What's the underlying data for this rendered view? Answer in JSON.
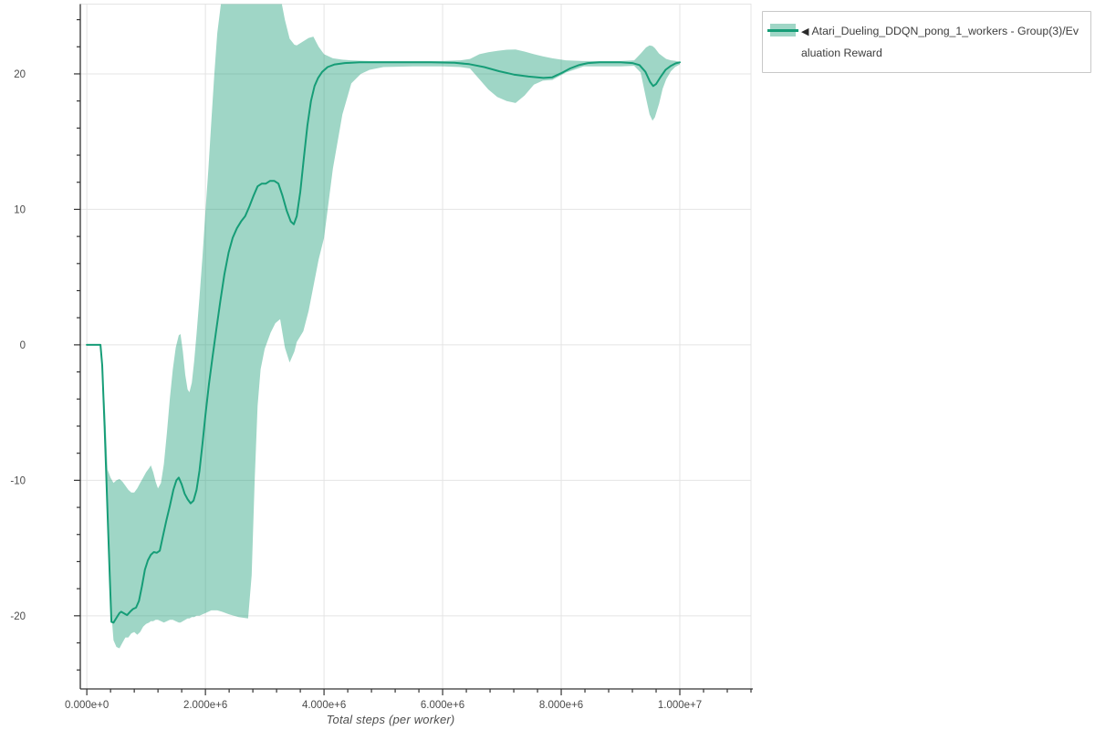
{
  "legend": {
    "marker": "◀",
    "label": "Atari_Dueling_DDQN_pong_1_workers - Group(3)/Evaluation Reward"
  },
  "colors": {
    "line": "#169d77",
    "band": "rgba(27,158,119,0.42)",
    "grid": "#e4e4e4",
    "spine": "#333333",
    "tick": "#333333",
    "tick_label": "#4a4a4a",
    "legend_border": "#c8c8c8"
  },
  "chart_data": {
    "type": "line",
    "title": "",
    "xlabel": "Total steps (per worker)",
    "ylabel": "",
    "grid": true,
    "legend_position": "top-right",
    "xlim": [
      -110000,
      11200000
    ],
    "ylim": [
      -25.4,
      25.15
    ],
    "x_ticks": [
      {
        "value": 0,
        "label": "0.000e+0"
      },
      {
        "value": 2000000,
        "label": "2.000e+6"
      },
      {
        "value": 4000000,
        "label": "4.000e+6"
      },
      {
        "value": 6000000,
        "label": "6.000e+6"
      },
      {
        "value": 8000000,
        "label": "8.000e+6"
      },
      {
        "value": 10000000,
        "label": "1.000e+7"
      }
    ],
    "x_minor_step": 400000,
    "y_ticks": [
      {
        "value": -20,
        "label": "-20"
      },
      {
        "value": -10,
        "label": "-10"
      },
      {
        "value": 0,
        "label": "0"
      },
      {
        "value": 10,
        "label": "10"
      },
      {
        "value": 20,
        "label": "20"
      }
    ],
    "y_minor_step": 2,
    "series": [
      {
        "name": "Atari_Dueling_DDQN_pong_1_workers - Group(3)/Evaluation Reward",
        "points": [
          [
            0,
            0
          ],
          [
            230000,
            0
          ],
          [
            260000,
            -1.5
          ],
          [
            300000,
            -6
          ],
          [
            350000,
            -12.5
          ],
          [
            390000,
            -17.5
          ],
          [
            415000,
            -20.45
          ],
          [
            450000,
            -20.5
          ],
          [
            500000,
            -20.15
          ],
          [
            550000,
            -19.8
          ],
          [
            580000,
            -19.7
          ],
          [
            620000,
            -19.8
          ],
          [
            680000,
            -19.95
          ],
          [
            730000,
            -19.7
          ],
          [
            780000,
            -19.5
          ],
          [
            830000,
            -19.4
          ],
          [
            880000,
            -18.9
          ],
          [
            930000,
            -17.8
          ],
          [
            980000,
            -16.6
          ],
          [
            1030000,
            -15.9
          ],
          [
            1080000,
            -15.5
          ],
          [
            1130000,
            -15.3
          ],
          [
            1180000,
            -15.35
          ],
          [
            1230000,
            -15.2
          ],
          [
            1280000,
            -14.2
          ],
          [
            1340000,
            -13.0
          ],
          [
            1400000,
            -11.9
          ],
          [
            1460000,
            -10.7
          ],
          [
            1510000,
            -10.0
          ],
          [
            1550000,
            -9.8
          ],
          [
            1600000,
            -10.3
          ],
          [
            1650000,
            -11.0
          ],
          [
            1700000,
            -11.4
          ],
          [
            1750000,
            -11.7
          ],
          [
            1800000,
            -11.5
          ],
          [
            1850000,
            -10.7
          ],
          [
            1900000,
            -9.3
          ],
          [
            1950000,
            -7.3
          ],
          [
            2000000,
            -5.2
          ],
          [
            2060000,
            -2.9
          ],
          [
            2120000,
            -0.9
          ],
          [
            2180000,
            1.0
          ],
          [
            2250000,
            3.2
          ],
          [
            2320000,
            5.2
          ],
          [
            2390000,
            6.8
          ],
          [
            2460000,
            7.9
          ],
          [
            2530000,
            8.6
          ],
          [
            2600000,
            9.1
          ],
          [
            2670000,
            9.5
          ],
          [
            2740000,
            10.2
          ],
          [
            2810000,
            11.0
          ],
          [
            2880000,
            11.7
          ],
          [
            2950000,
            11.9
          ],
          [
            3020000,
            11.9
          ],
          [
            3090000,
            12.1
          ],
          [
            3160000,
            12.1
          ],
          [
            3230000,
            11.9
          ],
          [
            3300000,
            11.0
          ],
          [
            3370000,
            9.9
          ],
          [
            3440000,
            9.1
          ],
          [
            3490000,
            8.9
          ],
          [
            3540000,
            9.5
          ],
          [
            3600000,
            11.3
          ],
          [
            3660000,
            13.8
          ],
          [
            3720000,
            16.2
          ],
          [
            3780000,
            18.0
          ],
          [
            3840000,
            19.1
          ],
          [
            3900000,
            19.7
          ],
          [
            3970000,
            20.15
          ],
          [
            4060000,
            20.5
          ],
          [
            4180000,
            20.7
          ],
          [
            4350000,
            20.8
          ],
          [
            4600000,
            20.85
          ],
          [
            5000000,
            20.85
          ],
          [
            5400000,
            20.85
          ],
          [
            5800000,
            20.85
          ],
          [
            6200000,
            20.82
          ],
          [
            6450000,
            20.72
          ],
          [
            6700000,
            20.5
          ],
          [
            6950000,
            20.2
          ],
          [
            7200000,
            19.95
          ],
          [
            7450000,
            19.8
          ],
          [
            7700000,
            19.7
          ],
          [
            7850000,
            19.75
          ],
          [
            8000000,
            20.05
          ],
          [
            8150000,
            20.4
          ],
          [
            8300000,
            20.65
          ],
          [
            8450000,
            20.8
          ],
          [
            8650000,
            20.85
          ],
          [
            9000000,
            20.85
          ],
          [
            9200000,
            20.8
          ],
          [
            9320000,
            20.65
          ],
          [
            9420000,
            20.15
          ],
          [
            9500000,
            19.4
          ],
          [
            9550000,
            19.1
          ],
          [
            9600000,
            19.25
          ],
          [
            9680000,
            19.8
          ],
          [
            9760000,
            20.3
          ],
          [
            9850000,
            20.6
          ],
          [
            9930000,
            20.78
          ],
          [
            10000000,
            20.85
          ]
        ],
        "band": [
          [
            300000,
            -7.0,
            -4.0
          ],
          [
            350000,
            -13.5,
            -9.2
          ],
          [
            400000,
            -19.0,
            -9.8
          ],
          [
            450000,
            -21.8,
            -10.2
          ],
          [
            500000,
            -22.3,
            -10.0
          ],
          [
            550000,
            -22.4,
            -9.9
          ],
          [
            600000,
            -22.0,
            -10.1
          ],
          [
            650000,
            -21.6,
            -10.4
          ],
          [
            700000,
            -21.6,
            -10.7
          ],
          [
            750000,
            -21.3,
            -10.9
          ],
          [
            800000,
            -21.2,
            -10.9
          ],
          [
            850000,
            -21.4,
            -10.6
          ],
          [
            900000,
            -21.2,
            -10.2
          ],
          [
            950000,
            -20.8,
            -9.8
          ],
          [
            1000000,
            -20.6,
            -9.4
          ],
          [
            1050000,
            -20.5,
            -9.1
          ],
          [
            1080000,
            -20.4,
            -8.9
          ],
          [
            1120000,
            -20.4,
            -9.4
          ],
          [
            1160000,
            -20.3,
            -10.1
          ],
          [
            1200000,
            -20.3,
            -10.6
          ],
          [
            1250000,
            -20.4,
            -10.2
          ],
          [
            1300000,
            -20.5,
            -8.8
          ],
          [
            1350000,
            -20.4,
            -6.5
          ],
          [
            1400000,
            -20.3,
            -4.0
          ],
          [
            1450000,
            -20.3,
            -1.8
          ],
          [
            1500000,
            -20.4,
            -0.2
          ],
          [
            1550000,
            -20.5,
            0.7
          ],
          [
            1580000,
            -20.5,
            0.8
          ],
          [
            1620000,
            -20.4,
            -0.5
          ],
          [
            1660000,
            -20.3,
            -2.2
          ],
          [
            1700000,
            -20.2,
            -3.3
          ],
          [
            1730000,
            -20.2,
            -3.5
          ],
          [
            1770000,
            -20.1,
            -2.8
          ],
          [
            1810000,
            -20.1,
            -1.2
          ],
          [
            1850000,
            -20.0,
            0.8
          ],
          [
            1900000,
            -20.0,
            3.5
          ],
          [
            1950000,
            -19.9,
            6.5
          ],
          [
            2000000,
            -19.8,
            9.8
          ],
          [
            2050000,
            -19.7,
            13.0
          ],
          [
            2100000,
            -19.6,
            16.5
          ],
          [
            2150000,
            -19.6,
            20.0
          ],
          [
            2200000,
            -19.6,
            23.0
          ],
          [
            2280000,
            -19.7,
            25.8
          ],
          [
            2400000,
            -19.9,
            26.0
          ],
          [
            2560000,
            -20.1,
            26.0
          ],
          [
            2720000,
            -20.2,
            26.0
          ],
          [
            2780000,
            -17.0,
            26.0
          ],
          [
            2830000,
            -10.0,
            26.0
          ],
          [
            2880000,
            -4.5,
            26.0
          ],
          [
            2930000,
            -1.8,
            26.0
          ],
          [
            3000000,
            -0.3,
            26.0
          ],
          [
            3100000,
            0.9,
            26.0
          ],
          [
            3180000,
            1.6,
            26.0
          ],
          [
            3260000,
            1.9,
            25.8
          ],
          [
            3340000,
            -0.2,
            24.0
          ],
          [
            3420000,
            -1.3,
            22.6
          ],
          [
            3500000,
            -0.5,
            22.15
          ],
          [
            3540000,
            0.2,
            22.1
          ],
          [
            3650000,
            1.0,
            22.4
          ],
          [
            3740000,
            2.5,
            22.65
          ],
          [
            3820000,
            4.3,
            22.75
          ],
          [
            3910000,
            6.3,
            22.0
          ],
          [
            4000000,
            7.9,
            21.45
          ],
          [
            4150000,
            13.0,
            21.15
          ],
          [
            4310000,
            17.0,
            21.05
          ],
          [
            4460000,
            19.3,
            21.0
          ],
          [
            4620000,
            20.0,
            20.97
          ],
          [
            4770000,
            20.3,
            20.95
          ],
          [
            5000000,
            20.5,
            20.95
          ],
          [
            5500000,
            20.55,
            20.95
          ],
          [
            6000000,
            20.55,
            20.95
          ],
          [
            6300000,
            20.5,
            21.0
          ],
          [
            6460000,
            20.4,
            21.1
          ],
          [
            6620000,
            19.6,
            21.45
          ],
          [
            6770000,
            18.85,
            21.6
          ],
          [
            6920000,
            18.3,
            21.7
          ],
          [
            7080000,
            18.0,
            21.78
          ],
          [
            7230000,
            17.85,
            21.8
          ],
          [
            7380000,
            18.4,
            21.65
          ],
          [
            7540000,
            19.2,
            21.45
          ],
          [
            7690000,
            19.5,
            21.3
          ],
          [
            7850000,
            19.55,
            21.15
          ],
          [
            8080000,
            20.1,
            21.0
          ],
          [
            8380000,
            20.55,
            20.95
          ],
          [
            8700000,
            20.55,
            20.95
          ],
          [
            9000000,
            20.55,
            20.95
          ],
          [
            9230000,
            20.6,
            21.0
          ],
          [
            9340000,
            20.1,
            21.5
          ],
          [
            9430000,
            18.2,
            21.95
          ],
          [
            9490000,
            17.0,
            22.1
          ],
          [
            9540000,
            16.55,
            22.05
          ],
          [
            9580000,
            16.8,
            21.9
          ],
          [
            9650000,
            17.8,
            21.5
          ],
          [
            9710000,
            18.9,
            21.3
          ],
          [
            9770000,
            19.6,
            21.1
          ],
          [
            9850000,
            20.2,
            21.0
          ],
          [
            9920000,
            20.5,
            20.97
          ],
          [
            10000000,
            20.7,
            20.9
          ]
        ]
      }
    ]
  }
}
